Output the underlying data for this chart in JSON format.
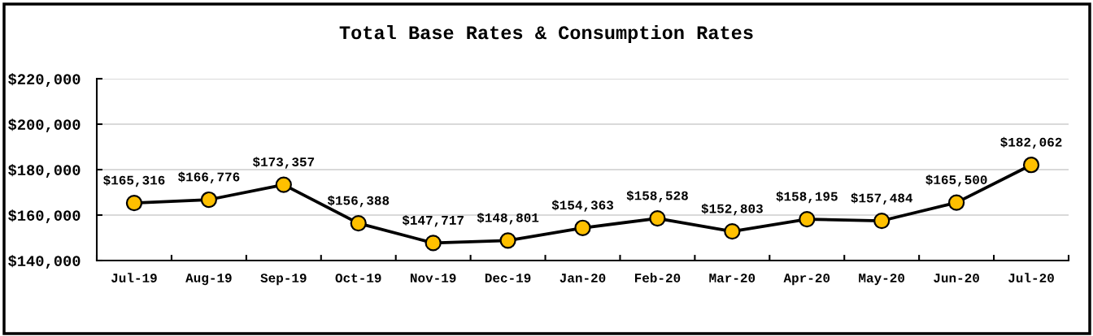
{
  "chart_data": {
    "type": "line",
    "title": "Total Base Rates & Consumption Rates",
    "categories": [
      "Jul-19",
      "Aug-19",
      "Sep-19",
      "Oct-19",
      "Nov-19",
      "Dec-19",
      "Jan-20",
      "Feb-20",
      "Mar-20",
      "Apr-20",
      "May-20",
      "Jun-20",
      "Jul-20"
    ],
    "series": [
      {
        "color": "#000000",
        "colors": [
          "#ffc000",
          "#ffc000",
          "#ffc000",
          "#ffc000",
          "#ffc000",
          "#ffc000",
          "#ffc000",
          "#ffc000",
          "#ffc000",
          "#ffc000",
          "#ffc000",
          "#ffc000",
          "#ffc000"
        ],
        "values": [
          165316,
          166776,
          173357,
          156388,
          147717,
          148801,
          154363,
          158528,
          152803,
          158195,
          157484,
          165500,
          182062
        ],
        "value_labels": [
          "$165,316",
          "$166,776",
          "$173,357",
          "$156,388",
          "$147,717",
          "$148,801",
          "$154,363",
          "$158,528",
          "$152,803",
          "$158,195",
          "$157,484",
          "$165,500",
          "$182,062"
        ]
      }
    ],
    "ylim": [
      140000,
      220000
    ],
    "yticks": [
      {
        "value": 140000,
        "label": "$140,000"
      },
      {
        "value": 160000,
        "label": "$160,000"
      },
      {
        "value": 180000,
        "label": "$180,000"
      },
      {
        "value": 200000,
        "label": "$200,000"
      },
      {
        "value": 220000,
        "label": "$220,000"
      }
    ],
    "grid": "y",
    "marker": "circle",
    "line_style": "solid"
  }
}
